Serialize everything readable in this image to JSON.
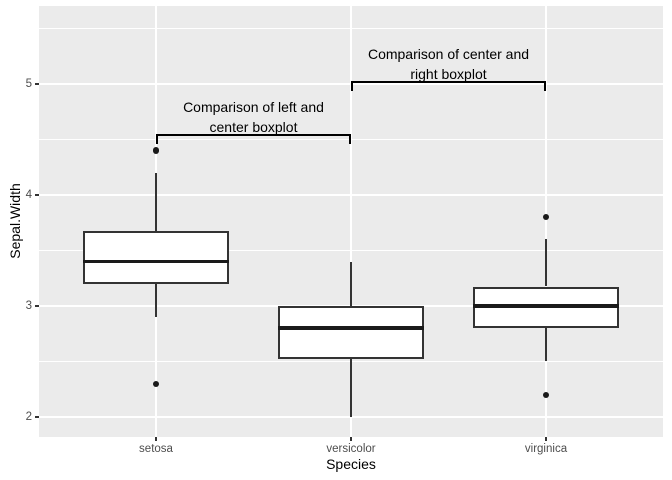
{
  "colors": {
    "background": "#FFFFFF",
    "panel_bg": "#EBEBEB",
    "grid": "#FFFFFF",
    "box_fill": "#FFFFFF",
    "box_border": "#333333",
    "whisker": "#333333",
    "median": "#1A1A1A",
    "outlier": "#1A1A1A",
    "axis_text": "#4D4D4D",
    "axis_title": "#000000",
    "bracket": "#000000"
  },
  "chart_data": {
    "type": "boxplot",
    "title": "",
    "xlabel": "Species",
    "ylabel": "Sepal.Width",
    "categories": [
      "setosa",
      "versicolor",
      "virginica"
    ],
    "y_ticks": [
      2,
      3,
      4,
      5
    ],
    "y_minor_ticks": [
      2.5,
      3.5,
      4.5,
      5.5
    ],
    "ylim": [
      1.82,
      5.7
    ],
    "grid": "on",
    "series": [
      {
        "category": "setosa",
        "lower_whisker": 2.9,
        "q1": 3.2,
        "median": 3.4,
        "q3": 3.675,
        "upper_whisker": 4.2,
        "outliers": [
          4.4,
          2.3
        ]
      },
      {
        "category": "versicolor",
        "lower_whisker": 2.0,
        "q1": 2.525,
        "median": 2.8,
        "q3": 3.0,
        "upper_whisker": 3.4,
        "outliers": []
      },
      {
        "category": "virginica",
        "lower_whisker": 2.5,
        "q1": 2.8,
        "median": 3.0,
        "q3": 3.175,
        "upper_whisker": 3.6,
        "outliers": [
          3.8,
          2.2
        ]
      }
    ],
    "annotations": [
      {
        "label_line1": "Comparison of left and",
        "label_line2": "center boxplot",
        "from_category": "setosa",
        "to_category": "versicolor",
        "bracket_y": 4.54
      },
      {
        "label_line1": "Comparison of center and",
        "label_line2": "right boxplot",
        "from_category": "versicolor",
        "to_category": "virginica",
        "bracket_y": 5.02
      }
    ]
  }
}
